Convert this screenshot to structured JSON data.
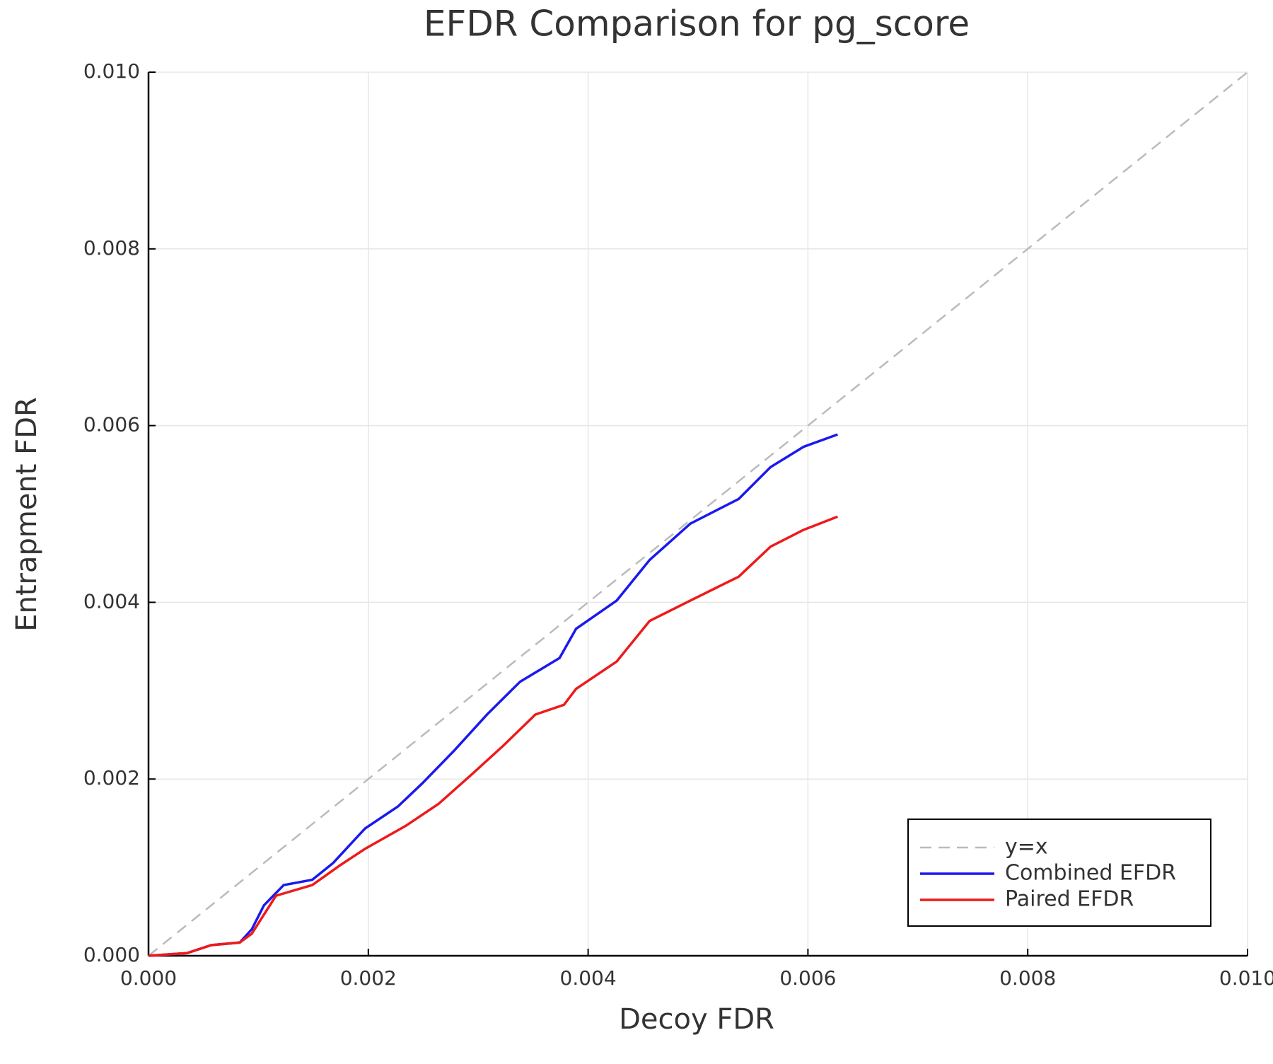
{
  "chart_data": {
    "type": "line",
    "title": "EFDR Comparison for pg_score",
    "x_label": "Decoy FDR",
    "y_label": "Entrapment FDR",
    "xlim": [
      0,
      0.01
    ],
    "ylim": [
      0,
      0.01
    ],
    "xticks": [
      {
        "value": 0,
        "label": "0.000"
      },
      0.002,
      0.004,
      0.006,
      0.008,
      {
        "value": 0.01,
        "label": "0.010"
      }
    ],
    "yticks": [
      {
        "value": 0,
        "label": "0.000"
      },
      0.002,
      0.004,
      0.006,
      0.008,
      {
        "value": 0.01,
        "label": "0.010"
      }
    ],
    "grid": true,
    "legend": "lower right",
    "series": [
      {
        "name": "y=x",
        "color": "#bbbbbb",
        "dashed": true,
        "x": [
          0,
          0.01
        ],
        "values": [
          0,
          0.01
        ]
      },
      {
        "name": "Combined EFDR",
        "color": "#1a1aee",
        "x": [
          0,
          0.00035,
          0.00057,
          0.00083,
          0.00094,
          0.00105,
          0.00123,
          0.00149,
          0.00168,
          0.00197,
          0.00227,
          0.00249,
          0.00278,
          0.00308,
          0.00338,
          0.00374,
          0.00389,
          0.00426,
          0.00456,
          0.00493,
          0.00537,
          0.00566,
          0.00596,
          0.00627
        ],
        "values": [
          0,
          3e-05,
          0.00012,
          0.00015,
          0.0003,
          0.00057,
          0.0008,
          0.00086,
          0.00105,
          0.00144,
          0.00169,
          0.00195,
          0.00232,
          0.00273,
          0.0031,
          0.00337,
          0.0037,
          0.00402,
          0.00448,
          0.00489,
          0.00517,
          0.00553,
          0.00576,
          0.0059
        ]
      },
      {
        "name": "Paired EFDR",
        "color": "#ee1a1a",
        "x": [
          0,
          0.00035,
          0.00057,
          0.00083,
          0.00094,
          0.00116,
          0.00149,
          0.00175,
          0.00197,
          0.00234,
          0.00264,
          0.00293,
          0.00323,
          0.00352,
          0.00378,
          0.00389,
          0.00426,
          0.00456,
          0.00493,
          0.00537,
          0.00566,
          0.00596,
          0.00627
        ],
        "values": [
          0,
          3e-05,
          0.00012,
          0.00015,
          0.00025,
          0.00068,
          0.0008,
          0.00103,
          0.00121,
          0.00147,
          0.00172,
          0.00204,
          0.00238,
          0.00273,
          0.00284,
          0.00302,
          0.00333,
          0.00379,
          0.00402,
          0.00429,
          0.00463,
          0.00482,
          0.00497
        ]
      }
    ]
  }
}
